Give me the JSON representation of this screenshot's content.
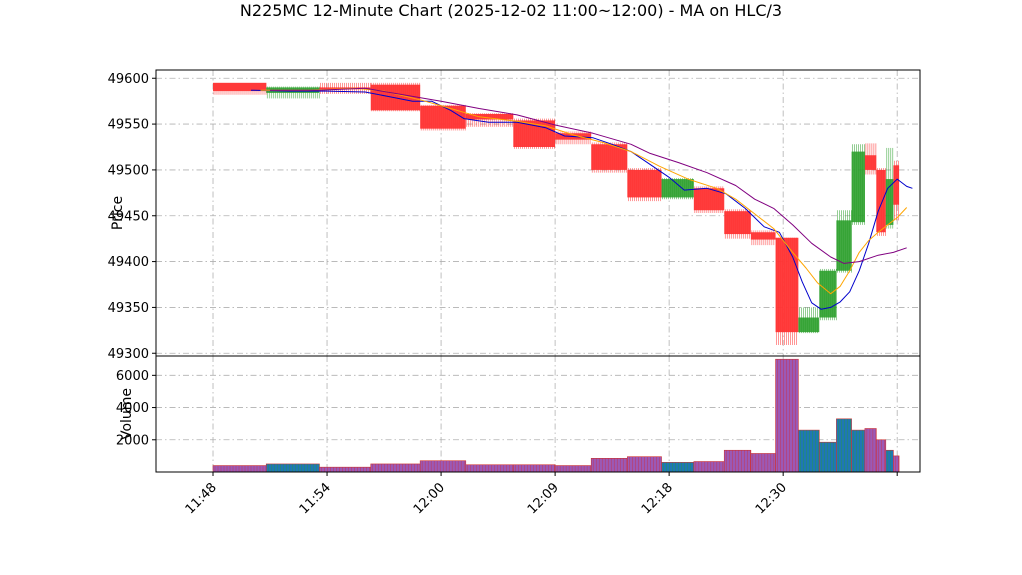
{
  "chart_data": {
    "type": "candlestick",
    "title": "N225MC 12-Minute Chart (2025-12-02 11:00~12:00) - MA on HLC/3",
    "colors": {
      "up": "#2ca02c",
      "down": "#ff3333",
      "ma_short": "#0000cc",
      "ma_mid": "#ffa500",
      "ma_long": "#800080",
      "volume_up": "#1f77b4",
      "volume_down": "#9b59b6",
      "volume_edge": "#cc3333",
      "grid": "#b0b0b0"
    },
    "price_panel": {
      "ylabel": "Price",
      "ylim": [
        49297,
        49609
      ],
      "yticks": [
        49300,
        49350,
        49400,
        49450,
        49500,
        49550,
        49600
      ],
      "grid": true
    },
    "volume_panel": {
      "ylabel": "Volume",
      "ylim": [
        0,
        7200
      ],
      "yticks": [
        2000,
        4000,
        6000
      ],
      "grid": true
    },
    "xlim_minutes": [
      -3.0,
      37.2
    ],
    "xticks": [
      {
        "label": "11:48",
        "t": 0
      },
      {
        "label": "11:54",
        "t": 6
      },
      {
        "label": "12:00",
        "t": 12
      },
      {
        "label": "12:09",
        "t": 18
      },
      {
        "label": "12:18",
        "t": 24
      },
      {
        "label": "12:30",
        "t": 30
      },
      {
        "label": "",
        "t": 36
      }
    ],
    "candles": [
      {
        "t0": 0.0,
        "t1": 2.8,
        "open": 49595,
        "close": 49586,
        "high": 49595,
        "low": 49582,
        "volume": 400
      },
      {
        "t0": 2.8,
        "t1": 5.6,
        "open": 49584,
        "close": 49590,
        "high": 49591,
        "low": 49578,
        "volume": 500
      },
      {
        "t0": 5.6,
        "t1": 8.3,
        "open": 49590,
        "close": 49588,
        "high": 49595,
        "low": 49583,
        "volume": 300
      },
      {
        "t0": 8.3,
        "t1": 10.9,
        "open": 49593,
        "close": 49565,
        "high": 49595,
        "low": 49564,
        "volume": 500
      },
      {
        "t0": 10.9,
        "t1": 13.3,
        "open": 49570,
        "close": 49545,
        "high": 49571,
        "low": 49543,
        "volume": 700
      },
      {
        "t0": 13.3,
        "t1": 15.8,
        "open": 49561,
        "close": 49555,
        "high": 49562,
        "low": 49547,
        "volume": 450
      },
      {
        "t0": 15.8,
        "t1": 18.0,
        "open": 49554,
        "close": 49525,
        "high": 49556,
        "low": 49523,
        "volume": 450
      },
      {
        "t0": 18.0,
        "t1": 19.9,
        "open": 49540,
        "close": 49533,
        "high": 49542,
        "low": 49528,
        "volume": 400
      },
      {
        "t0": 19.9,
        "t1": 21.8,
        "open": 49528,
        "close": 49500,
        "high": 49530,
        "low": 49497,
        "volume": 850
      },
      {
        "t0": 21.8,
        "t1": 23.6,
        "open": 49500,
        "close": 49470,
        "high": 49502,
        "low": 49466,
        "volume": 950
      },
      {
        "t0": 23.6,
        "t1": 25.3,
        "open": 49470,
        "close": 49490,
        "high": 49491,
        "low": 49468,
        "volume": 600
      },
      {
        "t0": 25.3,
        "t1": 26.9,
        "open": 49480,
        "close": 49456,
        "high": 49482,
        "low": 49453,
        "volume": 650
      },
      {
        "t0": 26.9,
        "t1": 28.3,
        "open": 49455,
        "close": 49430,
        "high": 49457,
        "low": 49425,
        "volume": 1350
      },
      {
        "t0": 28.3,
        "t1": 29.6,
        "open": 49432,
        "close": 49424,
        "high": 49434,
        "low": 49418,
        "volume": 1150
      },
      {
        "t0": 29.6,
        "t1": 30.8,
        "open": 49426,
        "close": 49323,
        "high": 49426,
        "low": 49309,
        "volume": 7000
      },
      {
        "t0": 30.8,
        "t1": 31.9,
        "open": 49323,
        "close": 49339,
        "high": 49350,
        "low": 49322,
        "volume": 2600
      },
      {
        "t0": 31.9,
        "t1": 32.8,
        "open": 49339,
        "close": 49390,
        "high": 49392,
        "low": 49336,
        "volume": 1850
      },
      {
        "t0": 32.8,
        "t1": 33.6,
        "open": 49390,
        "close": 49445,
        "high": 49456,
        "low": 49388,
        "volume": 3300
      },
      {
        "t0": 33.6,
        "t1": 34.3,
        "open": 49443,
        "close": 49520,
        "high": 49528,
        "low": 49440,
        "volume": 2600
      },
      {
        "t0": 34.3,
        "t1": 34.9,
        "open": 49516,
        "close": 49500,
        "high": 49529,
        "low": 49495,
        "volume": 2700
      },
      {
        "t0": 34.9,
        "t1": 35.4,
        "open": 49500,
        "close": 49432,
        "high": 49502,
        "low": 49428,
        "volume": 2000
      },
      {
        "t0": 35.4,
        "t1": 35.8,
        "open": 49440,
        "close": 49490,
        "high": 49524,
        "low": 49436,
        "volume": 1350
      },
      {
        "t0": 35.8,
        "t1": 36.1,
        "open": 49505,
        "close": 49462,
        "high": 49510,
        "low": 49445,
        "volume": 1000
      }
    ],
    "ma_series": [
      {
        "name": "",
        "color_key": "ma_short",
        "points": [
          [
            2.0,
            49587
          ],
          [
            4.0,
            49586
          ],
          [
            6.0,
            49586
          ],
          [
            8.0,
            49585
          ],
          [
            9.5,
            49579
          ],
          [
            10.5,
            49575
          ],
          [
            11.5,
            49575
          ],
          [
            12.5,
            49565
          ],
          [
            13.2,
            49556
          ],
          [
            14.5,
            49552
          ],
          [
            16.0,
            49552
          ],
          [
            17.5,
            49546
          ],
          [
            18.5,
            49537
          ],
          [
            20.0,
            49535
          ],
          [
            21.0,
            49528
          ],
          [
            22.0,
            49520
          ],
          [
            23.0,
            49506
          ],
          [
            24.0,
            49492
          ],
          [
            24.8,
            49478
          ],
          [
            26.0,
            49480
          ],
          [
            27.0,
            49474
          ],
          [
            28.0,
            49458
          ],
          [
            29.0,
            49438
          ],
          [
            29.8,
            49432
          ],
          [
            30.5,
            49405
          ],
          [
            31.0,
            49378
          ],
          [
            31.5,
            49355
          ],
          [
            32.0,
            49348
          ],
          [
            32.5,
            49350
          ],
          [
            33.0,
            49356
          ],
          [
            33.5,
            49367
          ],
          [
            34.0,
            49390
          ],
          [
            34.5,
            49420
          ],
          [
            35.0,
            49455
          ],
          [
            35.5,
            49480
          ],
          [
            36.0,
            49490
          ],
          [
            36.5,
            49482
          ],
          [
            36.8,
            49480
          ]
        ]
      },
      {
        "name": "",
        "color_key": "ma_mid",
        "points": [
          [
            2.5,
            49587
          ],
          [
            5.0,
            49587
          ],
          [
            7.5,
            49589
          ],
          [
            9.0,
            49586
          ],
          [
            11.0,
            49576
          ],
          [
            12.5,
            49567
          ],
          [
            14.0,
            49558
          ],
          [
            16.0,
            49553
          ],
          [
            17.5,
            49548
          ],
          [
            19.0,
            49538
          ],
          [
            20.5,
            49530
          ],
          [
            22.0,
            49520
          ],
          [
            23.5,
            49504
          ],
          [
            25.0,
            49490
          ],
          [
            26.5,
            49480
          ],
          [
            27.5,
            49468
          ],
          [
            28.5,
            49452
          ],
          [
            29.5,
            49436
          ],
          [
            30.5,
            49410
          ],
          [
            31.2,
            49393
          ],
          [
            31.8,
            49377
          ],
          [
            32.5,
            49365
          ],
          [
            33.0,
            49373
          ],
          [
            33.5,
            49390
          ],
          [
            34.0,
            49410
          ],
          [
            34.5,
            49423
          ],
          [
            35.0,
            49432
          ],
          [
            35.5,
            49440
          ],
          [
            36.0,
            49448
          ],
          [
            36.5,
            49459
          ]
        ]
      },
      {
        "name": "",
        "color_key": "ma_long",
        "points": [
          [
            3.0,
            49587
          ],
          [
            5.5,
            49587
          ],
          [
            8.0,
            49589
          ],
          [
            10.0,
            49582
          ],
          [
            12.0,
            49575
          ],
          [
            14.0,
            49567
          ],
          [
            16.0,
            49560
          ],
          [
            18.0,
            49549
          ],
          [
            20.0,
            49540
          ],
          [
            22.0,
            49528
          ],
          [
            23.0,
            49518
          ],
          [
            24.5,
            49508
          ],
          [
            26.0,
            49497
          ],
          [
            27.5,
            49483
          ],
          [
            28.5,
            49468
          ],
          [
            29.5,
            49458
          ],
          [
            30.5,
            49440
          ],
          [
            31.5,
            49420
          ],
          [
            32.5,
            49405
          ],
          [
            33.2,
            49398
          ],
          [
            34.0,
            49400
          ],
          [
            35.0,
            49407
          ],
          [
            35.8,
            49410
          ],
          [
            36.5,
            49415
          ]
        ]
      }
    ]
  }
}
